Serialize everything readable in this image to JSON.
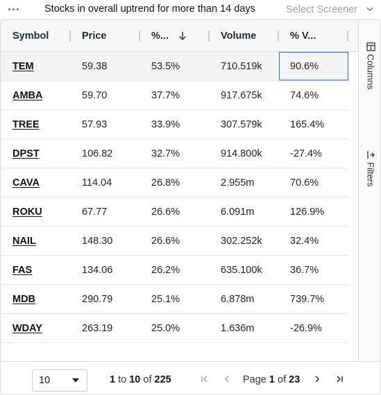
{
  "toolbar": {
    "title": "Stocks in overall uptrend for more than 14 days",
    "screener_placeholder": "Select Screener"
  },
  "columns": [
    {
      "label": "Symbol"
    },
    {
      "label": "Price"
    },
    {
      "label": "%..."
    },
    {
      "label": "Volume"
    },
    {
      "label": "% V..."
    }
  ],
  "rows": [
    {
      "symbol": "TEM",
      "price": "59.38",
      "pct": "53.5%",
      "volume": "710.519k",
      "vol_pct": "90.6%"
    },
    {
      "symbol": "AMBA",
      "price": "59.70",
      "pct": "37.7%",
      "volume": "917.675k",
      "vol_pct": "74.6%"
    },
    {
      "symbol": "TREE",
      "price": "57.93",
      "pct": "33.9%",
      "volume": "307.579k",
      "vol_pct": "165.4%"
    },
    {
      "symbol": "DPST",
      "price": "106.82",
      "pct": "32.7%",
      "volume": "914.800k",
      "vol_pct": "-27.4%"
    },
    {
      "symbol": "CAVA",
      "price": "114.04",
      "pct": "26.8%",
      "volume": "2.955m",
      "vol_pct": "70.6%"
    },
    {
      "symbol": "ROKU",
      "price": "67.77",
      "pct": "26.6%",
      "volume": "6.091m",
      "vol_pct": "126.9%"
    },
    {
      "symbol": "NAIL",
      "price": "148.30",
      "pct": "26.6%",
      "volume": "302.252k",
      "vol_pct": "32.4%"
    },
    {
      "symbol": "FAS",
      "price": "134.06",
      "pct": "26.2%",
      "volume": "635.100k",
      "vol_pct": "36.7%"
    },
    {
      "symbol": "MDB",
      "price": "290.79",
      "pct": "25.1%",
      "volume": "6.878m",
      "vol_pct": "739.7%"
    },
    {
      "symbol": "WDAY",
      "price": "263.19",
      "pct": "25.0%",
      "volume": "1.636m",
      "vol_pct": "-26.9%"
    }
  ],
  "side_panel": {
    "columns_label": "Columns",
    "filters_label": "Filters"
  },
  "pagination": {
    "page_size": "10",
    "row_from": "1",
    "to_word": "to",
    "row_to": "10",
    "of_word": "of",
    "row_total": "225",
    "page_word": "Page",
    "page_current": "1",
    "page_total": "23"
  },
  "icons": {
    "menu": "more-horizontal-icon",
    "screener": "chevron-down-icon",
    "sort": "arrow-down-icon",
    "columns": "columns-icon",
    "filters": "filter-icon",
    "first": "first-page-icon",
    "prev": "previous-page-icon",
    "next": "next-page-icon",
    "last": "last-page-icon"
  },
  "colors": {
    "focus_border": "#2d6fdb",
    "header_bg": "#f8f8f8",
    "selected_row_bg": "#f3f4f6"
  }
}
